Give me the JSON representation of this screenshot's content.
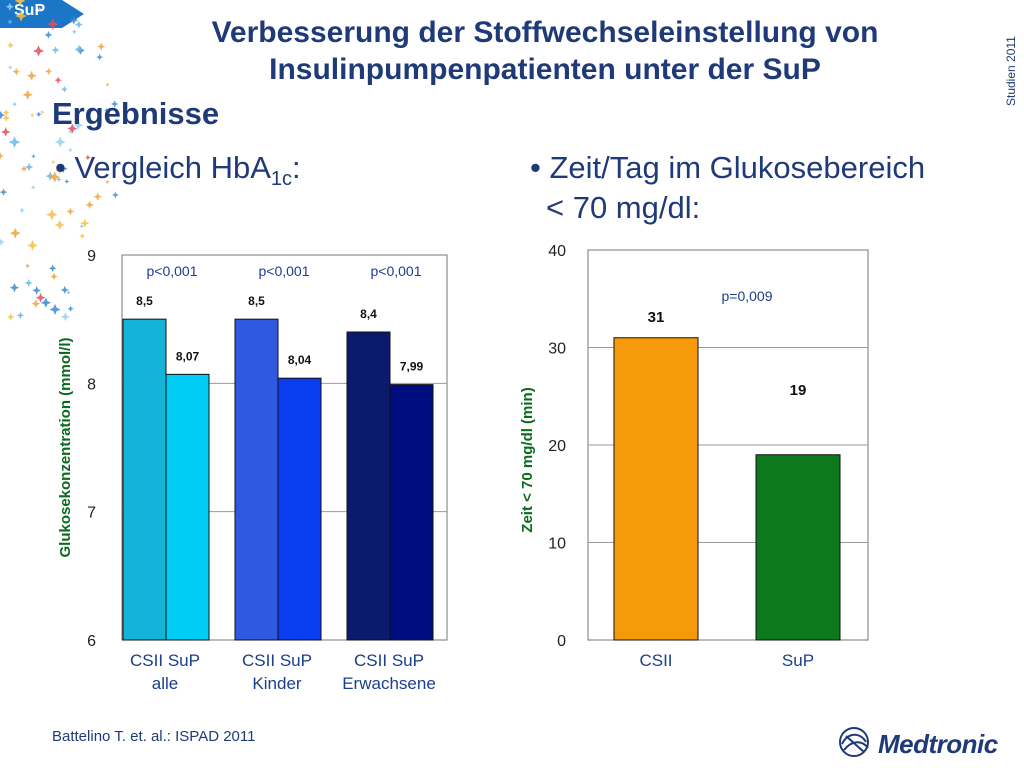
{
  "badge": {
    "label": "SuP"
  },
  "header": {
    "title_line1": "Verbesserung der Stoffwechseleinstellung von",
    "title_line2": "Insulinpumpenpatienten unter der SuP",
    "side_label": "Studien 2011",
    "subtitle": "Ergebnisse"
  },
  "bullets": {
    "left_prefix": "• Vergleich HbA",
    "left_sub": "1c",
    "left_suffix": ":",
    "right_line1": "• Zeit/Tag im Glukosebereich",
    "right_line2": "< 70 mg/dl:"
  },
  "chart_data": [
    {
      "type": "bar",
      "ylabel": "Glukosekonzentration (mmol/l)",
      "ylim": [
        6,
        9
      ],
      "yticks": [
        "6",
        "7",
        "8",
        "9"
      ],
      "grid": true,
      "groups": [
        {
          "label_line1": "CSII  SuP",
          "label_line2": "alle",
          "p": "p<0,001",
          "bars": [
            {
              "value": 8.5,
              "label": "8,5",
              "color": "#14b4d8"
            },
            {
              "value": 8.07,
              "label": "8,07",
              "color": "#00ccf5"
            }
          ]
        },
        {
          "label_line1": "CSII  SuP",
          "label_line2": "Kinder",
          "p": "p<0,001",
          "bars": [
            {
              "value": 8.5,
              "label": "8,5",
              "color": "#2f5ae0"
            },
            {
              "value": 8.04,
              "label": "8,04",
              "color": "#0a3cf0"
            }
          ]
        },
        {
          "label_line1": "CSII  SuP",
          "label_line2": "Erwachsene",
          "p": "p<0,001",
          "bars": [
            {
              "value": 8.4,
              "label": "8,4",
              "color": "#0c1a6e"
            },
            {
              "value": 7.99,
              "label": "7,99",
              "color": "#000d80"
            }
          ]
        }
      ]
    },
    {
      "type": "bar",
      "ylabel": "Zeit < 70 mg/dl (min)",
      "ylim": [
        0,
        40
      ],
      "yticks": [
        "0",
        "10",
        "20",
        "30",
        "40"
      ],
      "grid": true,
      "p": "p=0,009",
      "categories": [
        "CSII",
        "SuP"
      ],
      "bars": [
        {
          "value": 31,
          "label": "31",
          "color": "#f59a0a"
        },
        {
          "value": 19,
          "label": "19",
          "color": "#0c7a1c"
        }
      ]
    }
  ],
  "footer": {
    "citation": "Battelino T. et. al.: ISPAD  2011",
    "logo": "Medtronic",
    "logo_icon": "medtronic-logo-icon"
  },
  "colors": {
    "title": "#1f3a78",
    "badge": "#1b76c8",
    "label": "#1a3f8c",
    "ylabel_left": "#0a6a1e",
    "ylabel_right": "#0a6a1e",
    "p_value": "#1a3f8c"
  }
}
